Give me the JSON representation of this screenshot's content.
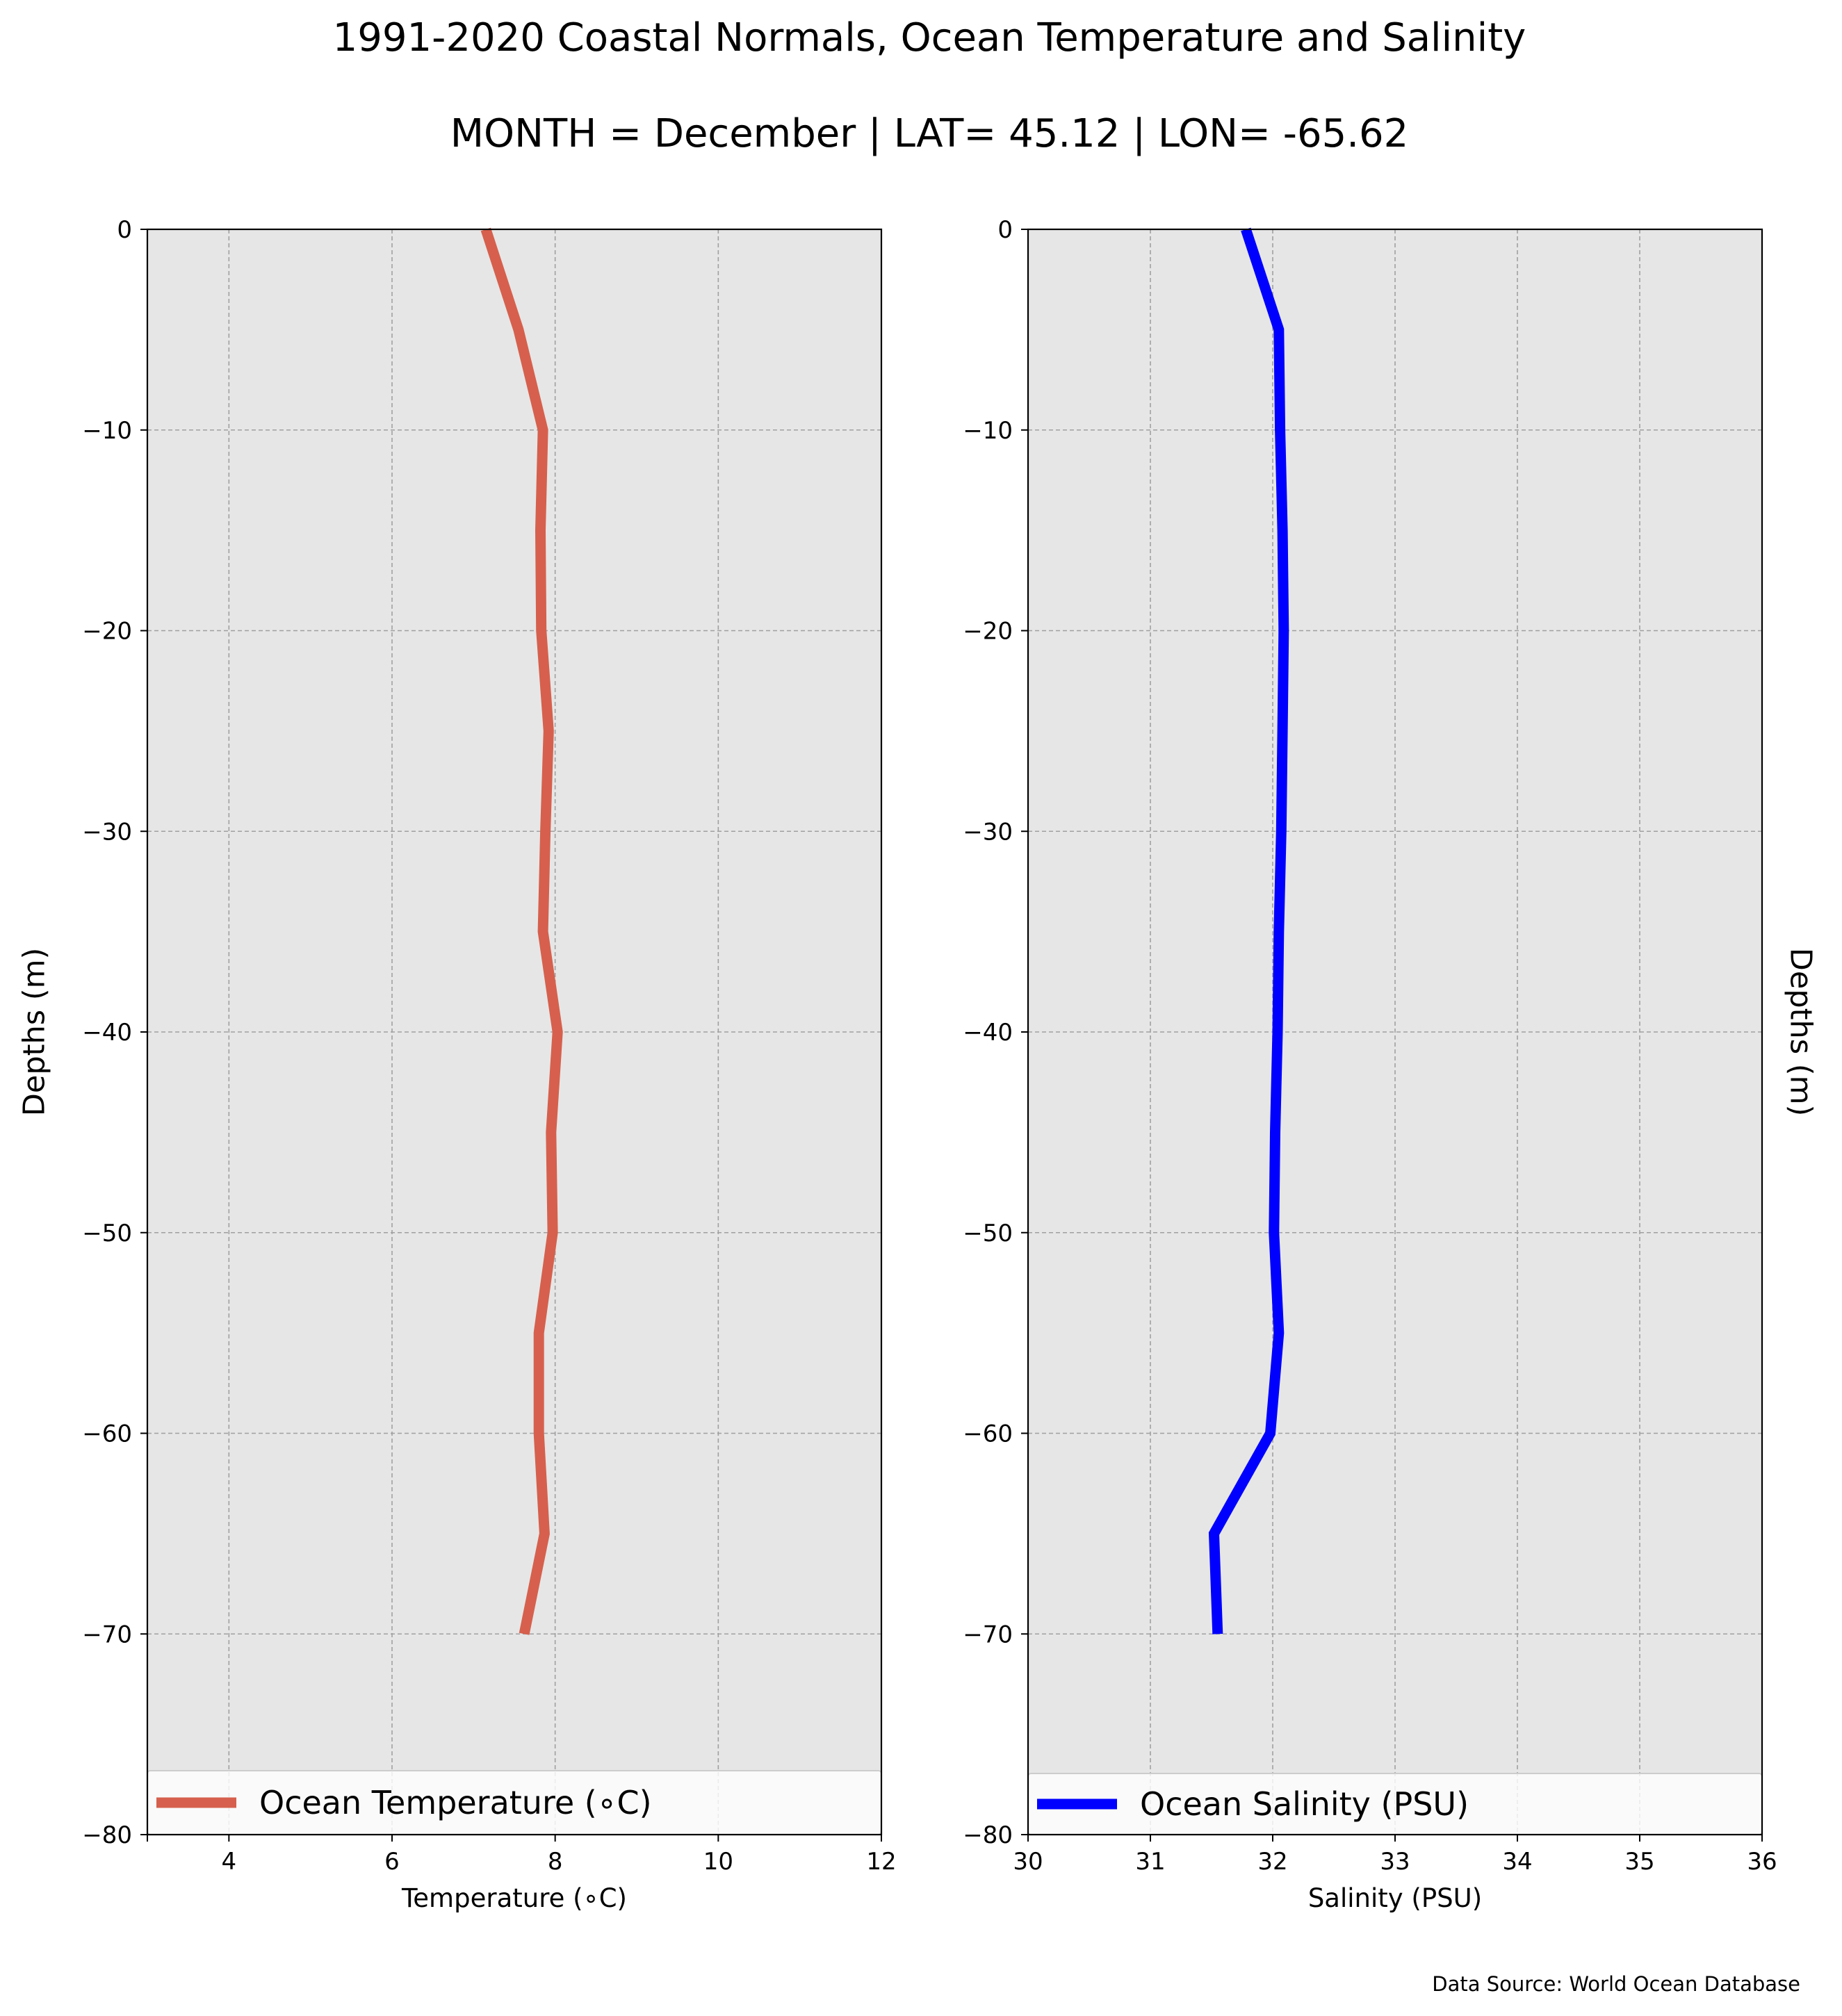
{
  "figure": {
    "title_line1": "1991-2020 Coastal Normals, Ocean Temperature and Salinity",
    "title_line2": "MONTH = December | LAT= 45.12 | LON= -65.62",
    "source": "Data Source: World Ocean Database",
    "background": "#e6e6e6"
  },
  "chart_data": [
    {
      "type": "line",
      "xlabel": "Temperature ($^\\circ$C)",
      "xlabel_display": "Temperature (∘C)",
      "ylabel": "Depths (m)",
      "xlim": [
        3,
        12
      ],
      "ylim": [
        -80,
        0
      ],
      "xticks": [
        4,
        6,
        8,
        10,
        12
      ],
      "yticks": [
        0,
        -10,
        -20,
        -30,
        -40,
        -50,
        -60,
        -70,
        -80
      ],
      "ytick_labels": [
        "0",
        "−10",
        "−20",
        "−30",
        "−40",
        "−50",
        "−60",
        "−70",
        "−80"
      ],
      "grid": true,
      "legend_position": "lower center",
      "series": [
        {
          "name": "Ocean Temperature (∘C)",
          "color": "#d6604d",
          "x": [
            7.15,
            7.55,
            7.85,
            7.82,
            7.83,
            7.92,
            7.88,
            7.85,
            8.03,
            7.95,
            7.97,
            7.8,
            7.8,
            7.87,
            7.62
          ],
          "y": [
            0,
            -5,
            -10,
            -15,
            -20,
            -25,
            -30,
            -35,
            -40,
            -45,
            -50,
            -55,
            -60,
            -65,
            -70
          ]
        }
      ]
    },
    {
      "type": "line",
      "xlabel": "Salinity (PSU)",
      "ylabel": "Depths (m)",
      "xlim": [
        30,
        36
      ],
      "ylim": [
        -80,
        0
      ],
      "xticks": [
        30,
        31,
        32,
        33,
        34,
        35,
        36
      ],
      "yticks": [
        0,
        -10,
        -20,
        -30,
        -40,
        -50,
        -60,
        -70,
        -80
      ],
      "ytick_labels": [
        "0",
        "−10",
        "−20",
        "−30",
        "−40",
        "−50",
        "−60",
        "−70",
        "−80"
      ],
      "grid": true,
      "legend_position": "lower center",
      "series": [
        {
          "name": "Ocean Salinity (PSU)",
          "color": "#0000ff",
          "x": [
            31.78,
            32.05,
            32.06,
            32.08,
            32.09,
            32.08,
            32.07,
            32.05,
            32.04,
            32.02,
            32.01,
            32.05,
            31.98,
            31.52,
            31.55
          ],
          "y": [
            0,
            -5,
            -10,
            -15,
            -20,
            -25,
            -30,
            -35,
            -40,
            -45,
            -50,
            -55,
            -60,
            -65,
            -70
          ]
        }
      ]
    }
  ]
}
